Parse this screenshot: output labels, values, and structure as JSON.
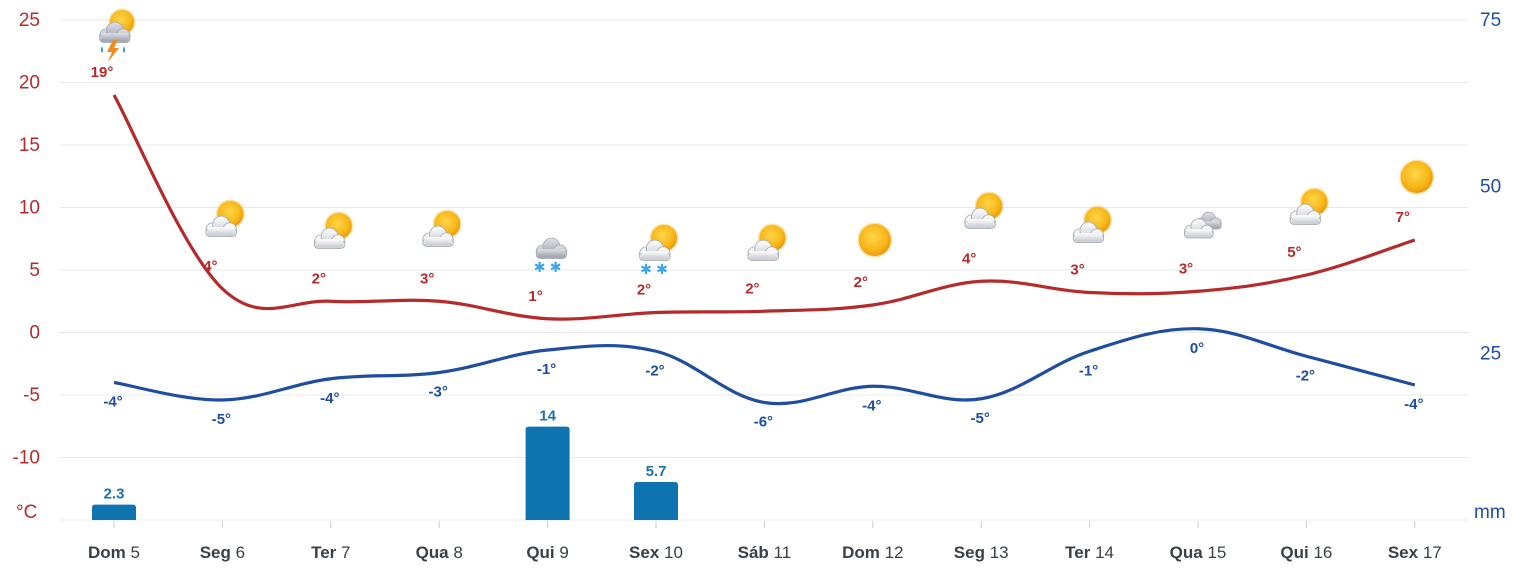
{
  "chart_data": {
    "type": "line",
    "categories": [
      "Dom 5",
      "Seg 6",
      "Ter 7",
      "Qua 8",
      "Qui 9",
      "Sex 10",
      "Sáb 11",
      "Dom 12",
      "Seg 13",
      "Ter 14",
      "Qua 15",
      "Qui 16",
      "Sex 17"
    ],
    "days": [
      {
        "name": "Dom",
        "num": "5"
      },
      {
        "name": "Seg",
        "num": "6"
      },
      {
        "name": "Ter",
        "num": "7"
      },
      {
        "name": "Qua",
        "num": "8"
      },
      {
        "name": "Qui",
        "num": "9"
      },
      {
        "name": "Sex",
        "num": "10"
      },
      {
        "name": "Sáb",
        "num": "11"
      },
      {
        "name": "Dom",
        "num": "12"
      },
      {
        "name": "Seg",
        "num": "13"
      },
      {
        "name": "Ter",
        "num": "14"
      },
      {
        "name": "Qua",
        "num": "15"
      },
      {
        "name": "Qui",
        "num": "16"
      },
      {
        "name": "Sex",
        "num": "17"
      }
    ],
    "series": [
      {
        "values": [
          19,
          4,
          2,
          3,
          1,
          2,
          2,
          2,
          4,
          3,
          3,
          5,
          7
        ],
        "labels": [
          "19°",
          "4°",
          "2°",
          "3°",
          "1°",
          "2°",
          "2°",
          "2°",
          "4°",
          "3°",
          "3°",
          "5°",
          "7°"
        ],
        "curve": [
          19,
          3.5,
          2.5,
          2.5,
          1.1,
          1.6,
          1.7,
          2.2,
          4.1,
          3.2,
          3.3,
          4.6,
          7.4
        ],
        "color": "#b52b2b"
      },
      {
        "values": [
          -4,
          -5,
          -4,
          -3,
          -1,
          -2,
          -6,
          -4,
          -5,
          -1,
          0,
          -2,
          -4
        ],
        "labels": [
          "-4°",
          "-5°",
          "-4°",
          "-3°",
          "-1°",
          "-2°",
          "-6°",
          "-4°",
          "-5°",
          "-1°",
          "0°",
          "-2°",
          "-4°"
        ],
        "curve": [
          -4,
          -5.4,
          -3.7,
          -3.2,
          -1.4,
          -1.5,
          -5.6,
          -4.3,
          -5.3,
          -1.5,
          0.3,
          -1.9,
          -4.2
        ],
        "color": "#1f4ea0"
      },
      {
        "values": [
          2.3,
          0,
          0,
          0,
          14,
          5.7,
          0,
          0,
          0,
          0,
          0,
          0,
          0
        ],
        "labels": [
          "2.3",
          "",
          "",
          "",
          "14",
          "5.7",
          "",
          "",
          "",
          "",
          "",
          "",
          ""
        ],
        "color": "#0d74b0"
      }
    ],
    "icons": [
      "sun-cloud-thunder-rain-icon",
      "partly-cloudy-icon",
      "partly-cloudy-icon",
      "partly-cloudy-icon",
      "cloud-snow-icon",
      "partly-cloudy-snow-icon",
      "partly-cloudy-icon",
      "sun-icon",
      "partly-cloudy-icon",
      "partly-cloudy-icon",
      "cloudy-icon",
      "partly-cloudy-icon",
      "sun-icon"
    ],
    "ylim": [
      -15,
      25
    ],
    "yticks_left": [
      -10,
      -5,
      0,
      5,
      10,
      15,
      20,
      25
    ],
    "y2lim": [
      0,
      75
    ],
    "yticks_right": [
      25,
      50,
      75
    ],
    "ylabel": "°C",
    "y2label": "mm",
    "grid": true
  }
}
